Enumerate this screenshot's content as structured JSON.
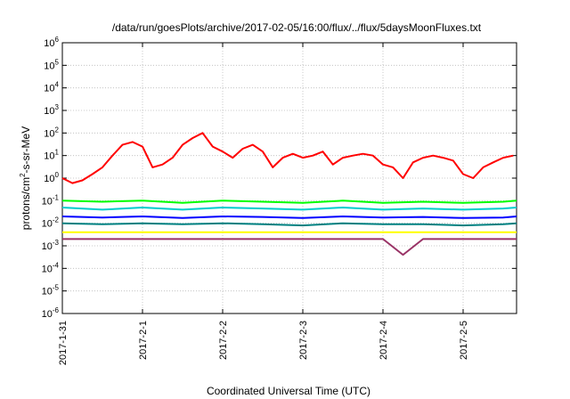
{
  "chart_data": {
    "type": "line",
    "title": "/data/run/goesPlots/archive/2017-02-05/16:00/flux/../flux/5daysMoonFluxes.txt",
    "xlabel": "Coordinated Universal Time (UTC)",
    "ylabel": "protons/cm²-s-sr-MeV",
    "ylabel_parts": {
      "before": "protons/cm",
      "sup": "2",
      "after": "-s-sr-MeV"
    },
    "xscale": "time",
    "yscale": "log",
    "xlim": [
      "2017-01-31T00:00",
      "2017-02-05T16:00"
    ],
    "ylim": [
      1e-06,
      1000000.0
    ],
    "grid": true,
    "x_ticks": [
      {
        "date": "2017-01-31T00:00",
        "label": "2017-1-31"
      },
      {
        "date": "2017-02-01T00:00",
        "label": "2017-2-1"
      },
      {
        "date": "2017-02-02T00:00",
        "label": "2017-2-2"
      },
      {
        "date": "2017-02-03T00:00",
        "label": "2017-2-3"
      },
      {
        "date": "2017-02-04T00:00",
        "label": "2017-2-4"
      },
      {
        "date": "2017-02-05T00:00",
        "label": "2017-2-5"
      }
    ],
    "y_ticks": [
      {
        "value": 1e-06,
        "base": "10",
        "exp": "-6"
      },
      {
        "value": 1e-05,
        "base": "10",
        "exp": "-5"
      },
      {
        "value": 0.0001,
        "base": "10",
        "exp": "-4"
      },
      {
        "value": 0.001,
        "base": "10",
        "exp": "-3"
      },
      {
        "value": 0.01,
        "base": "10",
        "exp": "-2"
      },
      {
        "value": 0.1,
        "base": "10",
        "exp": "-1"
      },
      {
        "value": 1,
        "base": "10",
        "exp": "0"
      },
      {
        "value": 10,
        "base": "10",
        "exp": "1"
      },
      {
        "value": 100,
        "base": "10",
        "exp": "2"
      },
      {
        "value": 1000,
        "base": "10",
        "exp": "3"
      },
      {
        "value": 10000,
        "base": "10",
        "exp": "4"
      },
      {
        "value": 100000,
        "base": "10",
        "exp": "5"
      },
      {
        "value": 1000000,
        "base": "10",
        "exp": "6"
      }
    ],
    "series": [
      {
        "color": "#ff0000",
        "x": [
          "2017-01-31T00:00",
          "2017-01-31T03:00",
          "2017-01-31T06:00",
          "2017-01-31T09:00",
          "2017-01-31T12:00",
          "2017-01-31T15:00",
          "2017-01-31T18:00",
          "2017-01-31T21:00",
          "2017-02-01T00:00",
          "2017-02-01T03:00",
          "2017-02-01T06:00",
          "2017-02-01T09:00",
          "2017-02-01T12:00",
          "2017-02-01T15:00",
          "2017-02-01T18:00",
          "2017-02-01T21:00",
          "2017-02-02T00:00",
          "2017-02-02T03:00",
          "2017-02-02T06:00",
          "2017-02-02T09:00",
          "2017-02-02T12:00",
          "2017-02-02T15:00",
          "2017-02-02T18:00",
          "2017-02-02T21:00",
          "2017-02-03T00:00",
          "2017-02-03T03:00",
          "2017-02-03T06:00",
          "2017-02-03T09:00",
          "2017-02-03T12:00",
          "2017-02-03T15:00",
          "2017-02-03T18:00",
          "2017-02-03T21:00",
          "2017-02-04T00:00",
          "2017-02-04T03:00",
          "2017-02-04T06:00",
          "2017-02-04T09:00",
          "2017-02-04T12:00",
          "2017-02-04T15:00",
          "2017-02-04T18:00",
          "2017-02-04T21:00",
          "2017-02-05T00:00",
          "2017-02-05T03:00",
          "2017-02-05T06:00",
          "2017-02-05T09:00",
          "2017-02-05T12:00",
          "2017-02-05T15:00"
        ],
        "values": [
          1.0,
          0.6,
          0.8,
          1.5,
          3,
          10,
          30,
          40,
          25,
          3,
          4,
          8,
          30,
          60,
          100,
          25,
          15,
          8,
          20,
          30,
          15,
          3,
          8,
          12,
          8,
          10,
          15,
          4,
          8,
          10,
          12,
          10,
          4,
          3,
          1,
          5,
          8,
          10,
          8,
          6,
          1.5,
          1,
          3,
          5,
          8,
          10
        ]
      },
      {
        "color": "#00ff00",
        "x": [
          "2017-01-31T00:00",
          "2017-01-31T12:00",
          "2017-02-01T00:00",
          "2017-02-01T12:00",
          "2017-02-02T00:00",
          "2017-02-02T12:00",
          "2017-02-03T00:00",
          "2017-02-03T12:00",
          "2017-02-04T00:00",
          "2017-02-04T12:00",
          "2017-02-05T00:00",
          "2017-02-05T12:00",
          "2017-02-05T16:00"
        ],
        "values": [
          0.1,
          0.09,
          0.1,
          0.08,
          0.1,
          0.09,
          0.08,
          0.1,
          0.08,
          0.09,
          0.08,
          0.09,
          0.1
        ]
      },
      {
        "color": "#00cccc",
        "x": [
          "2017-01-31T00:00",
          "2017-01-31T12:00",
          "2017-02-01T00:00",
          "2017-02-01T12:00",
          "2017-02-02T00:00",
          "2017-02-02T12:00",
          "2017-02-03T00:00",
          "2017-02-03T12:00",
          "2017-02-04T00:00",
          "2017-02-04T12:00",
          "2017-02-05T00:00",
          "2017-02-05T12:00",
          "2017-02-05T16:00"
        ],
        "values": [
          0.05,
          0.04,
          0.05,
          0.04,
          0.05,
          0.045,
          0.04,
          0.05,
          0.04,
          0.045,
          0.04,
          0.045,
          0.05
        ]
      },
      {
        "color": "#0000ff",
        "x": [
          "2017-01-31T00:00",
          "2017-01-31T12:00",
          "2017-02-01T00:00",
          "2017-02-01T12:00",
          "2017-02-02T00:00",
          "2017-02-02T12:00",
          "2017-02-03T00:00",
          "2017-02-03T12:00",
          "2017-02-04T00:00",
          "2017-02-04T12:00",
          "2017-02-05T00:00",
          "2017-02-05T12:00",
          "2017-02-05T16:00"
        ],
        "values": [
          0.02,
          0.018,
          0.02,
          0.017,
          0.02,
          0.019,
          0.017,
          0.02,
          0.018,
          0.019,
          0.017,
          0.018,
          0.02
        ]
      },
      {
        "color": "#008080",
        "x": [
          "2017-01-31T00:00",
          "2017-01-31T12:00",
          "2017-02-01T00:00",
          "2017-02-01T12:00",
          "2017-02-02T00:00",
          "2017-02-02T12:00",
          "2017-02-03T00:00",
          "2017-02-03T12:00",
          "2017-02-04T00:00",
          "2017-02-04T12:00",
          "2017-02-05T00:00",
          "2017-02-05T12:00",
          "2017-02-05T16:00"
        ],
        "values": [
          0.01,
          0.009,
          0.01,
          0.009,
          0.01,
          0.009,
          0.008,
          0.01,
          0.009,
          0.009,
          0.008,
          0.009,
          0.01
        ]
      },
      {
        "color": "#ffff00",
        "x": [
          "2017-01-31T00:00",
          "2017-01-31T12:00",
          "2017-02-01T00:00",
          "2017-02-01T12:00",
          "2017-02-02T00:00",
          "2017-02-02T12:00",
          "2017-02-03T00:00",
          "2017-02-03T12:00",
          "2017-02-04T00:00",
          "2017-02-04T12:00",
          "2017-02-05T00:00",
          "2017-02-05T12:00",
          "2017-02-05T16:00"
        ],
        "values": [
          0.004,
          0.004,
          0.004,
          0.004,
          0.004,
          0.004,
          0.004,
          0.004,
          0.004,
          0.004,
          0.004,
          0.004,
          0.004
        ]
      },
      {
        "color": "#993366",
        "x": [
          "2017-01-31T00:00",
          "2017-01-31T12:00",
          "2017-02-01T00:00",
          "2017-02-01T12:00",
          "2017-02-02T00:00",
          "2017-02-02T12:00",
          "2017-02-03T00:00",
          "2017-02-03T12:00",
          "2017-02-04T00:00",
          "2017-02-04T06:00",
          "2017-02-04T12:00",
          "2017-02-05T00:00",
          "2017-02-05T12:00",
          "2017-02-05T16:00"
        ],
        "values": [
          0.002,
          0.002,
          0.002,
          0.002,
          0.002,
          0.002,
          0.002,
          0.002,
          0.002,
          0.0004,
          0.002,
          0.002,
          0.002,
          0.002
        ]
      }
    ]
  }
}
